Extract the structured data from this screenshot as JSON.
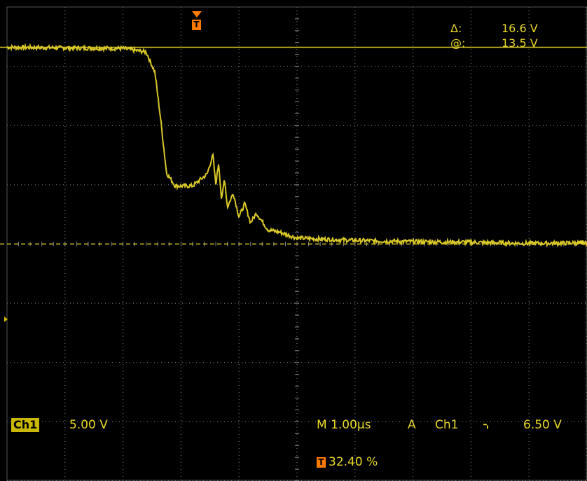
{
  "colors": {
    "background": "#000000",
    "trace": "#d8c728",
    "grid": "#8a8a8a",
    "text": "#e6d52a",
    "trigger_marker": "#ff7a00",
    "channel_badge": "#c9b700"
  },
  "cursor_readout": {
    "delta_symbol": "Δ:",
    "delta_value": "16.6 V",
    "at_symbol": "@:",
    "at_value": "13.5 V"
  },
  "trigger": {
    "marker_letter": "T",
    "position_percent": "32.40 %",
    "level_arrow": "◄"
  },
  "channel": {
    "name": "Ch1",
    "scale": "5.00 V"
  },
  "timebase": {
    "label": "M 1.00µs",
    "mode": "A",
    "source": "Ch1",
    "slope_icon": "falling-edge-icon",
    "slope_glyph": "⌍",
    "level": "6.50 V"
  },
  "chart_data": {
    "type": "line",
    "xlabel": "",
    "ylabel": "",
    "x_unit": "µs",
    "y_unit": "V",
    "xlim": [
      0,
      10
    ],
    "ylim": [
      -20,
      20
    ],
    "grid": true,
    "cursors": {
      "top_volts": 16.6,
      "bottom_volts": 0.0
    },
    "series": [
      {
        "x": [
          0.0,
          2.0,
          2.4,
          2.55,
          2.65,
          2.75,
          2.9,
          3.2,
          3.45,
          3.55,
          3.6,
          3.65,
          3.7,
          3.75,
          3.8,
          3.9,
          4.0,
          4.1,
          4.2,
          4.3,
          4.5,
          4.7,
          5.0,
          6.0,
          7.0,
          8.0,
          9.0,
          10.0
        ],
        "y": [
          16.6,
          16.5,
          16.2,
          14.5,
          10.5,
          6.0,
          4.9,
          4.9,
          5.9,
          7.5,
          5.0,
          6.9,
          3.6,
          5.6,
          3.1,
          4.3,
          2.3,
          3.4,
          1.8,
          2.6,
          1.2,
          1.0,
          0.5,
          0.3,
          0.2,
          0.15,
          0.05,
          0.1
        ]
      }
    ]
  }
}
